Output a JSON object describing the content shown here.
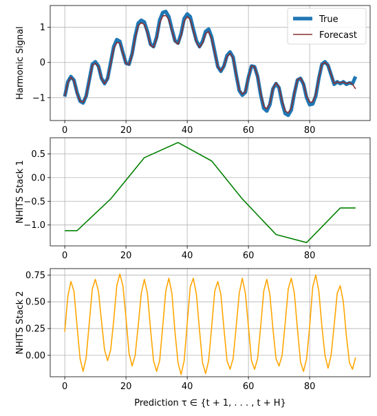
{
  "chart_data": [
    {
      "type": "line",
      "ylabel": "Harmonic Signal",
      "xlabel": "",
      "xlim": [
        -4.75,
        99.75
      ],
      "ylim": [
        -1.65,
        1.62
      ],
      "xticks": [
        0,
        20,
        40,
        60,
        80
      ],
      "yticks": [
        -1,
        0,
        1
      ],
      "grid": true,
      "legend": "top-right",
      "series": [
        {
          "name": "True",
          "color": "#1f77b4",
          "x": [
            0,
            1,
            2,
            3,
            4,
            5,
            6,
            7,
            8,
            9,
            10,
            11,
            12,
            13,
            14,
            15,
            16,
            17,
            18,
            19,
            20,
            21,
            22,
            23,
            24,
            25,
            26,
            27,
            28,
            29,
            30,
            31,
            32,
            33,
            34,
            35,
            36,
            37,
            38,
            39,
            40,
            41,
            42,
            43,
            44,
            45,
            46,
            47,
            48,
            49,
            50,
            51,
            52,
            53,
            54,
            55,
            56,
            57,
            58,
            59,
            60,
            61,
            62,
            63,
            64,
            65,
            66,
            67,
            68,
            69,
            70,
            71,
            72,
            73,
            74,
            75,
            76,
            77,
            78,
            79,
            80,
            81,
            82,
            83,
            84,
            85,
            86,
            87,
            88,
            89,
            90,
            91,
            92,
            93,
            94,
            95
          ],
          "y": [
            -0.97,
            -0.55,
            -0.4,
            -0.5,
            -0.85,
            -1.1,
            -1.15,
            -0.95,
            -0.5,
            -0.05,
            0.02,
            -0.1,
            -0.45,
            -0.6,
            -0.45,
            0.0,
            0.45,
            0.65,
            0.6,
            0.28,
            -0.02,
            -0.05,
            0.25,
            0.75,
            1.12,
            1.2,
            1.15,
            0.88,
            0.52,
            0.45,
            0.72,
            1.2,
            1.42,
            1.45,
            1.3,
            0.95,
            0.62,
            0.55,
            0.82,
            1.25,
            1.38,
            1.3,
            0.95,
            0.62,
            0.45,
            0.6,
            0.88,
            0.95,
            0.72,
            0.3,
            -0.12,
            -0.25,
            -0.1,
            0.2,
            0.3,
            0.15,
            -0.35,
            -0.8,
            -0.93,
            -0.85,
            -0.42,
            -0.1,
            -0.12,
            -0.4,
            -0.92,
            -1.3,
            -1.38,
            -1.2,
            -0.75,
            -0.6,
            -0.72,
            -1.15,
            -1.45,
            -1.5,
            -1.35,
            -0.88,
            -0.5,
            -0.45,
            -0.62,
            -1.0,
            -1.2,
            -1.18,
            -0.95,
            -0.45,
            -0.05,
            0.02,
            -0.08,
            -0.35,
            -0.62,
            -0.55,
            -0.6,
            -0.55,
            -0.62,
            -0.58,
            -0.6,
            -0.4
          ]
        },
        {
          "name": "Forecast",
          "color": "#8b2e2e",
          "x": [
            0,
            1,
            2,
            3,
            4,
            5,
            6,
            7,
            8,
            9,
            10,
            11,
            12,
            13,
            14,
            15,
            16,
            17,
            18,
            19,
            20,
            21,
            22,
            23,
            24,
            25,
            26,
            27,
            28,
            29,
            30,
            31,
            32,
            33,
            34,
            35,
            36,
            37,
            38,
            39,
            40,
            41,
            42,
            43,
            44,
            45,
            46,
            47,
            48,
            49,
            50,
            51,
            52,
            53,
            54,
            55,
            56,
            57,
            58,
            59,
            60,
            61,
            62,
            63,
            64,
            65,
            66,
            67,
            68,
            69,
            70,
            71,
            72,
            73,
            74,
            75,
            76,
            77,
            78,
            79,
            80,
            81,
            82,
            83,
            84,
            85,
            86,
            87,
            88,
            89,
            90,
            91,
            92,
            93,
            94,
            95
          ],
          "y": [
            -0.95,
            -0.58,
            -0.42,
            -0.52,
            -0.87,
            -1.1,
            -1.13,
            -0.95,
            -0.52,
            -0.08,
            -0.02,
            -0.12,
            -0.46,
            -0.6,
            -0.47,
            -0.03,
            0.4,
            0.57,
            0.55,
            0.25,
            -0.03,
            -0.06,
            0.22,
            0.7,
            1.05,
            1.13,
            1.08,
            0.84,
            0.5,
            0.43,
            0.68,
            1.12,
            1.32,
            1.34,
            1.22,
            0.9,
            0.6,
            0.52,
            0.77,
            1.17,
            1.3,
            1.22,
            0.9,
            0.58,
            0.43,
            0.55,
            0.82,
            0.88,
            0.67,
            0.27,
            -0.12,
            -0.24,
            -0.1,
            0.17,
            0.26,
            0.12,
            -0.35,
            -0.78,
            -0.9,
            -0.83,
            -0.42,
            -0.1,
            -0.12,
            -0.4,
            -0.88,
            -1.24,
            -1.32,
            -1.16,
            -0.74,
            -0.58,
            -0.7,
            -1.1,
            -1.38,
            -1.43,
            -1.3,
            -0.86,
            -0.49,
            -0.44,
            -0.6,
            -0.96,
            -1.13,
            -1.12,
            -0.9,
            -0.44,
            -0.05,
            0.0,
            -0.08,
            -0.34,
            -0.6,
            -0.55,
            -0.58,
            -0.55,
            -0.6,
            -0.57,
            -0.62,
            -0.75
          ]
        }
      ]
    },
    {
      "type": "line",
      "ylabel": "NHITS Stack 1",
      "xlabel": "",
      "xlim": [
        -4.75,
        99.75
      ],
      "ylim": [
        -1.44,
        0.84
      ],
      "xticks": [
        0,
        20,
        40,
        60,
        80
      ],
      "yticks": [
        -1.0,
        -0.5,
        0.0,
        0.5
      ],
      "ytick_labels": [
        "−1.0",
        "−0.5",
        "0.0",
        "0.5"
      ],
      "grid": true,
      "series": [
        {
          "color": "#008000",
          "x": [
            0,
            4,
            15,
            26,
            37,
            48,
            58,
            69,
            79,
            90,
            95
          ],
          "y": [
            -1.12,
            -1.12,
            -0.45,
            0.42,
            0.74,
            0.35,
            -0.45,
            -1.2,
            -1.37,
            -0.64,
            -0.64
          ]
        }
      ]
    },
    {
      "type": "line",
      "ylabel": "NHITS Stack 2",
      "xlabel": "Prediction τ ∈ {t + 1, . . . , t + H}",
      "xlim": [
        -4.75,
        99.75
      ],
      "ylim": [
        -0.2,
        0.81
      ],
      "xticks": [
        0,
        20,
        40,
        60,
        80
      ],
      "yticks": [
        0.0,
        0.25,
        0.5,
        0.75
      ],
      "ytick_labels": [
        "0.00",
        "0.25",
        "0.50",
        "0.75"
      ],
      "grid": true,
      "series": [
        {
          "color": "#ffa500",
          "x": [
            0,
            1,
            2,
            3,
            4,
            5,
            6,
            7,
            8,
            9,
            10,
            11,
            12,
            13,
            14,
            15,
            16,
            17,
            18,
            19,
            20,
            21,
            22,
            23,
            24,
            25,
            26,
            27,
            28,
            29,
            30,
            31,
            32,
            33,
            34,
            35,
            36,
            37,
            38,
            39,
            40,
            41,
            42,
            43,
            44,
            45,
            46,
            47,
            48,
            49,
            50,
            51,
            52,
            53,
            54,
            55,
            56,
            57,
            58,
            59,
            60,
            61,
            62,
            63,
            64,
            65,
            66,
            67,
            68,
            69,
            70,
            71,
            72,
            73,
            74,
            75,
            76,
            77,
            78,
            79,
            80,
            81,
            82,
            83,
            84,
            85,
            86,
            87,
            88,
            89,
            90,
            91,
            92,
            93,
            94,
            95
          ],
          "y": [
            0.22,
            0.55,
            0.69,
            0.6,
            0.28,
            -0.03,
            -0.15,
            -0.02,
            0.3,
            0.62,
            0.71,
            0.6,
            0.32,
            0.05,
            -0.05,
            0.05,
            0.33,
            0.65,
            0.76,
            0.65,
            0.35,
            0.02,
            -0.1,
            0.0,
            0.28,
            0.58,
            0.71,
            0.58,
            0.25,
            -0.05,
            -0.15,
            -0.05,
            0.27,
            0.6,
            0.72,
            0.58,
            0.22,
            -0.07,
            -0.18,
            -0.05,
            0.3,
            0.64,
            0.72,
            0.57,
            0.24,
            -0.07,
            -0.17,
            -0.05,
            0.27,
            0.6,
            0.69,
            0.57,
            0.25,
            -0.05,
            -0.13,
            -0.03,
            0.27,
            0.58,
            0.72,
            0.58,
            0.27,
            -0.05,
            -0.13,
            -0.03,
            0.27,
            0.6,
            0.71,
            0.57,
            0.25,
            -0.03,
            -0.1,
            0.0,
            0.3,
            0.62,
            0.72,
            0.58,
            0.25,
            -0.06,
            -0.15,
            -0.03,
            0.27,
            0.64,
            0.75,
            0.6,
            0.27,
            0.0,
            -0.12,
            0.0,
            0.28,
            0.58,
            0.65,
            0.5,
            0.18,
            -0.07,
            -0.13,
            -0.02
          ]
        }
      ]
    }
  ]
}
